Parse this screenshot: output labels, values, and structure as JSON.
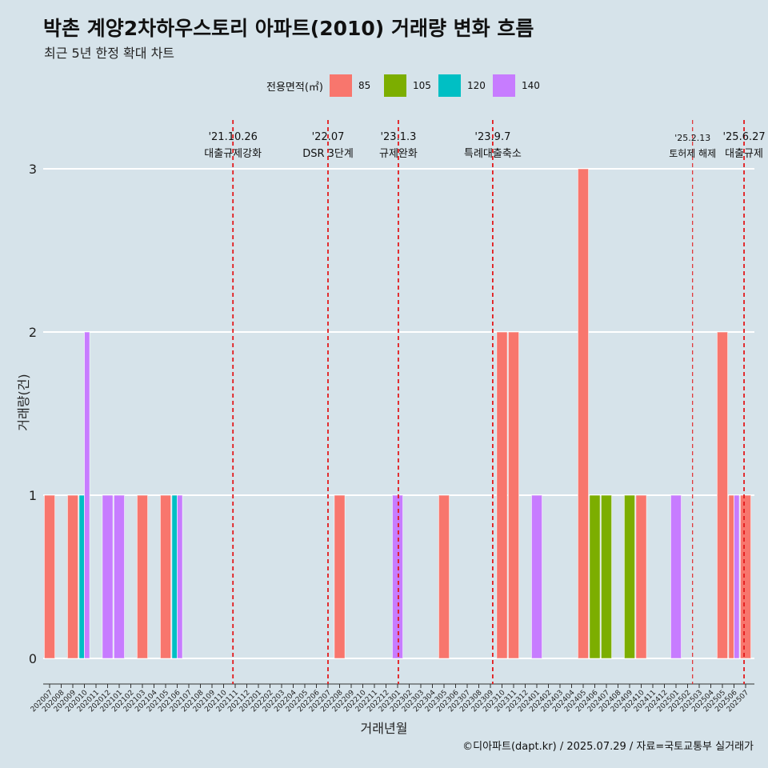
{
  "header": {
    "title": "박촌 계양2차하우스토리 아파트(2010) 거래량 변화 흐름",
    "subtitle": "최근 5년 한정 확대 차트"
  },
  "legend": {
    "title": "전용면적(㎡)",
    "items": [
      {
        "label": "85",
        "color": "#f8766d"
      },
      {
        "label": "105",
        "color": "#7cae00"
      },
      {
        "label": "120",
        "color": "#00bfc4"
      },
      {
        "label": "140",
        "color": "#c77cff"
      }
    ]
  },
  "caption": "©디아파트(dapt.kr) / 2025.07.29 / 자료=국토교통부 실거래가",
  "chart_data": {
    "type": "bar",
    "xlabel": "거래년월",
    "ylabel": "거래량(건)",
    "ylim": [
      0,
      3
    ],
    "yticks": [
      0,
      1,
      2,
      3
    ],
    "grid": true,
    "legend_position": "top",
    "categories": [
      "202007",
      "202008",
      "202009",
      "202010",
      "202011",
      "202012",
      "202101",
      "202102",
      "202103",
      "202104",
      "202105",
      "202106",
      "202107",
      "202108",
      "202109",
      "202110",
      "202111",
      "202112",
      "202201",
      "202202",
      "202203",
      "202204",
      "202205",
      "202206",
      "202207",
      "202208",
      "202209",
      "202210",
      "202211",
      "202212",
      "202301",
      "202302",
      "202303",
      "202304",
      "202305",
      "202306",
      "202307",
      "202308",
      "202309",
      "202310",
      "202311",
      "202312",
      "202401",
      "202402",
      "202403",
      "202404",
      "202405",
      "202406",
      "202407",
      "202408",
      "202409",
      "202410",
      "202411",
      "202412",
      "202501",
      "202502",
      "202503",
      "202504",
      "202505",
      "202506",
      "202507"
    ],
    "series": [
      {
        "name": "85",
        "color": "#f8766d",
        "values": [
          1,
          0,
          1,
          0,
          0,
          0,
          0,
          0,
          1,
          0,
          1,
          0,
          0,
          0,
          0,
          0,
          0,
          0,
          0,
          0,
          0,
          0,
          0,
          0,
          0,
          1,
          0,
          0,
          0,
          0,
          0,
          0,
          0,
          0,
          1,
          0,
          0,
          0,
          0,
          2,
          2,
          0,
          0,
          0,
          0,
          0,
          3,
          0,
          0,
          0,
          0,
          1,
          0,
          0,
          0,
          0,
          0,
          0,
          2,
          1,
          1
        ]
      },
      {
        "name": "105",
        "color": "#7cae00",
        "values": [
          0,
          0,
          0,
          0,
          0,
          0,
          0,
          0,
          0,
          0,
          0,
          0,
          0,
          0,
          0,
          0,
          0,
          0,
          0,
          0,
          0,
          0,
          0,
          0,
          0,
          0,
          0,
          0,
          0,
          0,
          0,
          0,
          0,
          0,
          0,
          0,
          0,
          0,
          0,
          0,
          0,
          0,
          0,
          0,
          0,
          0,
          0,
          1,
          1,
          0,
          1,
          0,
          0,
          0,
          0,
          0,
          0,
          0,
          0,
          0,
          0
        ]
      },
      {
        "name": "120",
        "color": "#00bfc4",
        "values": [
          0,
          0,
          0,
          1,
          0,
          0,
          0,
          0,
          0,
          0,
          0,
          1,
          0,
          0,
          0,
          0,
          0,
          0,
          0,
          0,
          0,
          0,
          0,
          0,
          0,
          0,
          0,
          0,
          0,
          0,
          0,
          0,
          0,
          0,
          0,
          0,
          0,
          0,
          0,
          0,
          0,
          0,
          0,
          0,
          0,
          0,
          0,
          0,
          0,
          0,
          0,
          0,
          0,
          0,
          0,
          0,
          0,
          0,
          0,
          0,
          0
        ]
      },
      {
        "name": "140",
        "color": "#c77cff",
        "values": [
          0,
          0,
          0,
          2,
          0,
          1,
          1,
          0,
          0,
          0,
          0,
          1,
          0,
          0,
          0,
          0,
          0,
          0,
          0,
          0,
          0,
          0,
          0,
          0,
          0,
          0,
          0,
          0,
          0,
          0,
          1,
          0,
          0,
          0,
          0,
          0,
          0,
          0,
          0,
          0,
          0,
          0,
          1,
          0,
          0,
          0,
          0,
          0,
          0,
          0,
          0,
          0,
          0,
          0,
          1,
          0,
          0,
          0,
          0,
          1,
          0
        ]
      }
    ],
    "annotations": [
      {
        "date": "2021-10-26",
        "label1": "'21.10.26",
        "label2": "대출규제강화",
        "style": "bold"
      },
      {
        "date": "2022-07",
        "label1": "'22.07",
        "label2": "DSR 3단계",
        "style": "bold"
      },
      {
        "date": "2023-01-03",
        "label1": "'23.1.3",
        "label2": "규제완화",
        "style": "bold"
      },
      {
        "date": "2023-09-07",
        "label1": "'23.9.7",
        "label2": "특례대출축소",
        "style": "bold"
      },
      {
        "date": "2025-02-13",
        "label1": "'25.2.13",
        "label2": "토허제 해제",
        "style": "thin"
      },
      {
        "date": "2025-06-27",
        "label1": "'25.6.27",
        "label2": "대출규제",
        "style": "bold"
      }
    ]
  }
}
